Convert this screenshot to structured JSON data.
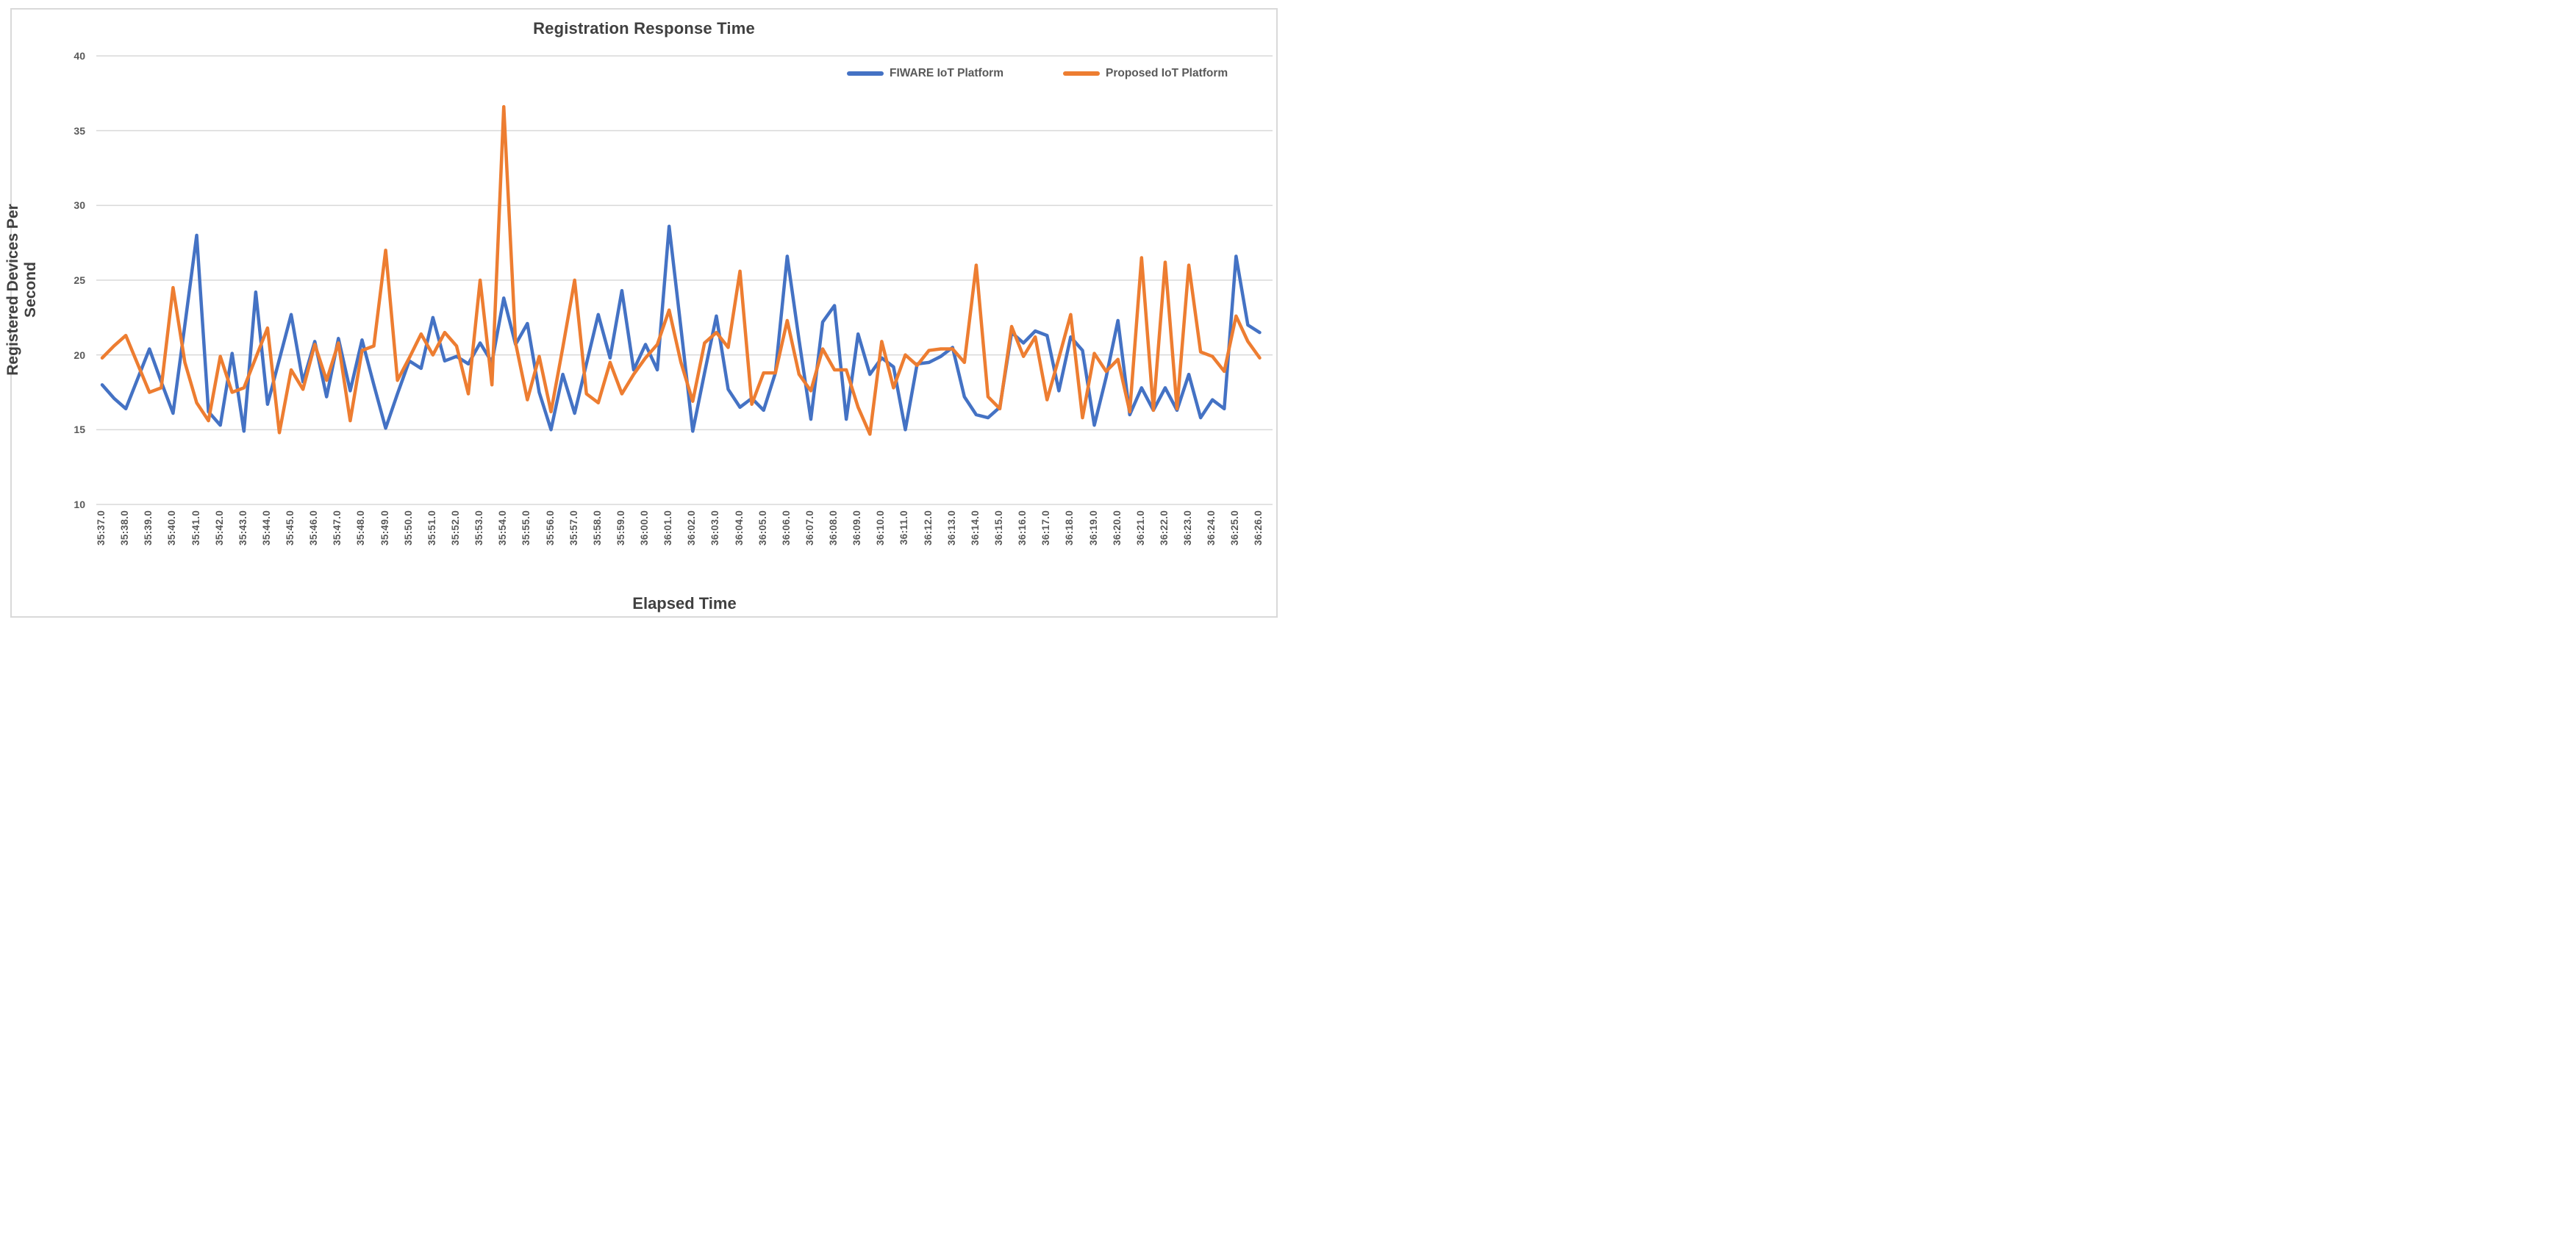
{
  "chart_data": {
    "type": "line",
    "title": "Registration Response Time",
    "xlabel": "Elapsed Time",
    "ylabel": "Registered Devices Per Second",
    "ylim": [
      10,
      40
    ],
    "yticks": [
      10,
      15,
      20,
      25,
      30,
      35,
      40
    ],
    "grid": "horizontal-only",
    "legend_position": "top-right-inside",
    "x_tick_labels": [
      "35:37.0",
      "35:38.0",
      "35:39.0",
      "35:40.0",
      "35:41.0",
      "35:42.0",
      "35:43.0",
      "35:44.0",
      "35:45.0",
      "35:46.0",
      "35:47.0",
      "35:48.0",
      "35:49.0",
      "35:50.0",
      "35:51.0",
      "35:52.0",
      "35:53.0",
      "35:54.0",
      "35:55.0",
      "35:56.0",
      "35:57.0",
      "35:58.0",
      "35:59.0",
      "36:00.0",
      "36:01.0",
      "36:02.0",
      "36:03.0",
      "36:04.0",
      "36:05.0",
      "36:06.0",
      "36:07.0",
      "36:08.0",
      "36:09.0",
      "36:10.0",
      "36:11.0",
      "36:12.0",
      "36:13.0",
      "36:14.0",
      "36:15.0",
      "36:16.0",
      "36:17.0",
      "36:18.0",
      "36:19.0",
      "36:20.0",
      "36:21.0",
      "36:22.0",
      "36:23.0",
      "36:24.0",
      "36:25.0",
      "36:26.0"
    ],
    "points_per_labeled_second": 2,
    "sampling_note": "vertices occur every 0.5 s; axis labels mark whole seconds",
    "series": [
      {
        "name": "FIWARE IoT Platform",
        "color": "#4472C4",
        "values": [
          18.0,
          17.1,
          16.4,
          18.4,
          20.4,
          18.2,
          16.1,
          22.0,
          28.0,
          16.2,
          15.3,
          20.1,
          14.9,
          24.2,
          16.7,
          19.7,
          22.7,
          18.2,
          20.9,
          17.2,
          21.1,
          17.6,
          21.0,
          18.0,
          15.1,
          17.4,
          19.6,
          19.1,
          22.5,
          19.6,
          19.9,
          19.4,
          20.8,
          19.5,
          23.8,
          20.7,
          22.1,
          17.5,
          15.0,
          18.7,
          16.1,
          19.4,
          22.7,
          19.8,
          24.3,
          19.0,
          20.7,
          19.0,
          28.6,
          21.8,
          14.9,
          18.8,
          22.6,
          17.7,
          16.5,
          17.1,
          16.3,
          18.8,
          26.6,
          21.0,
          15.7,
          22.2,
          23.3,
          15.7,
          21.4,
          18.7,
          19.8,
          19.2,
          15.0,
          19.4,
          19.5,
          19.9,
          20.5,
          17.2,
          16.0,
          15.8,
          16.5,
          21.5,
          20.8,
          21.6,
          21.3,
          17.6,
          21.2,
          20.3,
          15.3,
          18.5,
          22.3,
          16.0,
          17.8,
          16.3,
          17.8,
          16.3,
          18.7,
          15.8,
          17.0,
          16.4,
          26.6,
          22.0,
          21.5
        ]
      },
      {
        "name": "Proposed IoT Platform",
        "color": "#ED7D31",
        "values": [
          19.8,
          20.6,
          21.3,
          19.4,
          17.5,
          17.8,
          24.5,
          19.5,
          16.8,
          15.6,
          19.9,
          17.5,
          17.8,
          19.8,
          21.8,
          14.8,
          19.0,
          17.7,
          20.7,
          18.3,
          20.8,
          15.6,
          20.3,
          20.6,
          27.0,
          18.3,
          19.8,
          21.4,
          20.0,
          21.5,
          20.6,
          17.4,
          25.0,
          18.0,
          36.6,
          20.8,
          17.0,
          19.9,
          16.2,
          20.5,
          25.0,
          17.4,
          16.8,
          19.5,
          17.4,
          18.7,
          19.8,
          20.7,
          23.0,
          19.5,
          16.9,
          20.8,
          21.5,
          20.5,
          25.6,
          16.7,
          18.8,
          18.8,
          22.3,
          18.7,
          17.6,
          20.4,
          19.0,
          19.0,
          16.5,
          14.7,
          20.9,
          17.8,
          20.0,
          19.3,
          20.3,
          20.4,
          20.4,
          19.5,
          26.0,
          17.2,
          16.4,
          21.9,
          19.9,
          21.2,
          17.0,
          19.8,
          22.7,
          15.8,
          20.1,
          18.9,
          19.7,
          16.2,
          26.5,
          16.3,
          26.2,
          16.4,
          26.0,
          20.2,
          19.9,
          18.9,
          22.6,
          20.9,
          19.8
        ]
      }
    ],
    "colors": {
      "gridline": "#d9d9d9",
      "frame_border": "#d9d9d9",
      "tick_text": "#595959",
      "title_text": "#404040"
    }
  }
}
